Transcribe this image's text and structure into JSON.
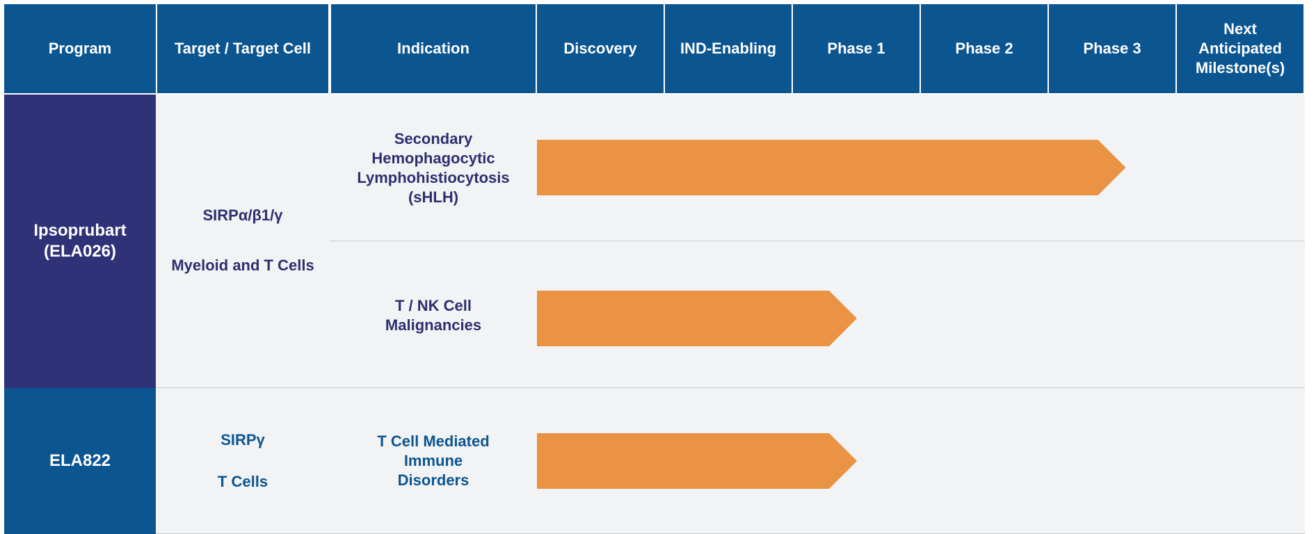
{
  "headers": {
    "program": "Program",
    "target": "Target / Target Cell",
    "indication": "Indication",
    "discovery": "Discovery",
    "ind": "IND-Enabling",
    "phase1": "Phase 1",
    "phase2": "Phase 2",
    "phase3": "Phase 3",
    "milestone_line1": "Next",
    "milestone_line2": "Anticipated",
    "milestone_line3": "Milestone(s)"
  },
  "programs": [
    {
      "name_line1": "Ipsoprubart",
      "name_line2": "(ELA026)",
      "target_line1": "SIRPα/β1/γ",
      "target_line2": "Myeloid and T Cells",
      "indications": [
        {
          "line1": "Secondary",
          "line2": "Hemophagocytic",
          "line3": "Lymphohistiocytosis",
          "line4": "(sHLH)"
        },
        {
          "line1": "T / NK Cell",
          "line2": "Malignancies"
        }
      ]
    },
    {
      "name_line1": "ELA822",
      "target_line1": "SIRPγ",
      "target_line2": "T Cells",
      "indications": [
        {
          "line1": "T Cell Mediated",
          "line2": "Immune",
          "line3": "Disorders"
        }
      ]
    }
  ],
  "colors": {
    "header_bg": "#0b5591",
    "program1_bg": "#2f3277",
    "program2_bg": "#0b5591",
    "body_bg": "#f2f3f5",
    "bar": "#ea9344",
    "text_navy": "#2e2f6e",
    "text_blue": "#0b5591"
  },
  "chart_data": {
    "type": "bar",
    "stages": [
      "Discovery",
      "IND-Enabling",
      "Phase 1",
      "Phase 2",
      "Phase 3"
    ],
    "series": [
      {
        "program": "Ipsoprubart (ELA026)",
        "indication": "Secondary Hemophagocytic Lymphohistiocytosis (sHLH)",
        "progress": 4.6
      },
      {
        "program": "Ipsoprubart (ELA026)",
        "indication": "T / NK Cell Malignancies",
        "progress": 2.5
      },
      {
        "program": "ELA822",
        "indication": "T Cell Mediated Immune Disorders",
        "progress": 2.5
      }
    ]
  }
}
